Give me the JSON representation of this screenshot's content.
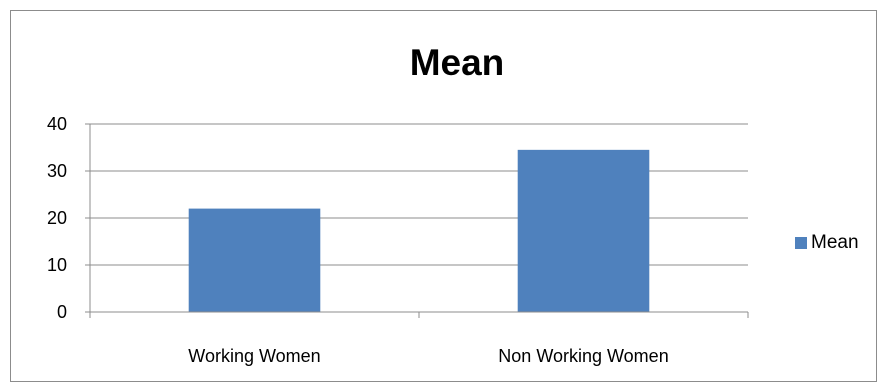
{
  "chart_data": {
    "type": "bar",
    "title": "Mean",
    "categories": [
      "Working Women",
      "Non Working Women"
    ],
    "series": [
      {
        "name": "Mean",
        "values": [
          22,
          34.5
        ],
        "color": "#4f81bd"
      }
    ],
    "ylim": [
      0,
      40
    ],
    "yticks": [
      "0",
      "10",
      "20",
      "30",
      "40"
    ],
    "grid": true,
    "legend_position": "right"
  }
}
